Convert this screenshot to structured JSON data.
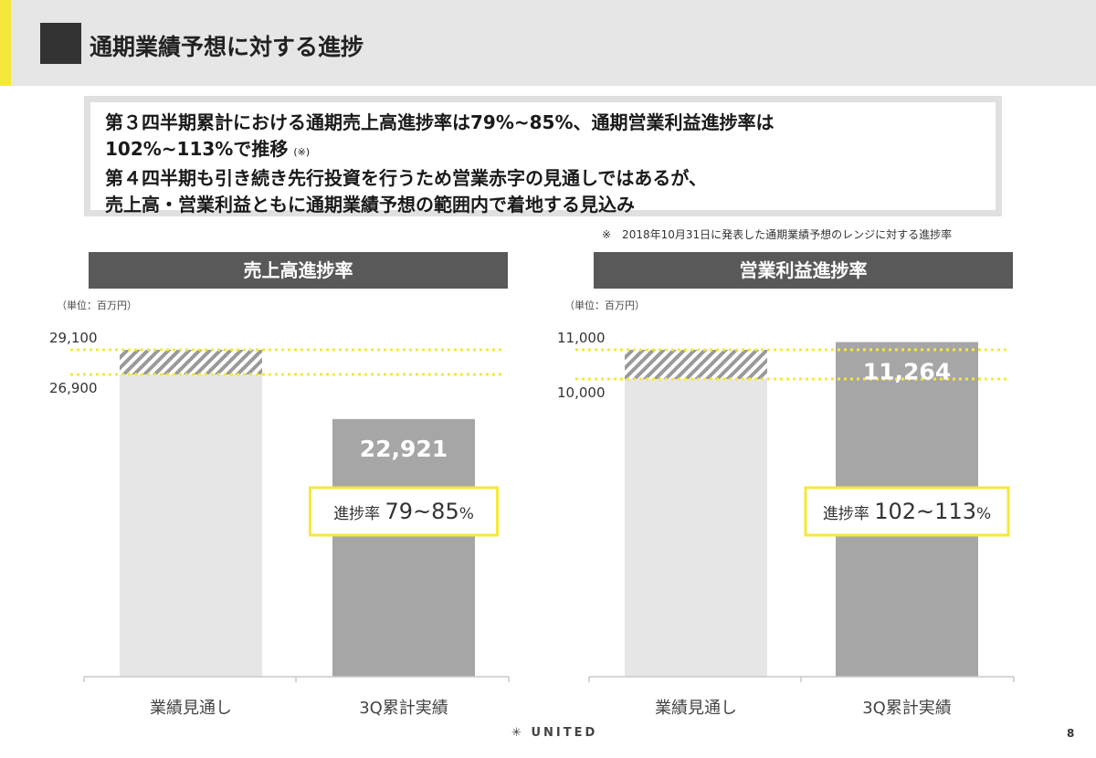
{
  "header": {
    "title": "通期業績予想に対する進捗"
  },
  "summary": {
    "line1": "第３四半期累計における通期売上高進捗率は79%~85%、通期営業利益進捗率は",
    "line2": "102%~113%で推移",
    "line2_note": "(※)",
    "line3": "第４四半期も引き続き先行投資を行うため営業赤字の見通しではあるが、",
    "line4": "売上高・営業利益ともに通期業績予想の範囲内で着地する見込み"
  },
  "footnote": "※　2018年10月31日に発表した通期業績予想のレンジに対する進捗率",
  "colors": {
    "forecast_bar": "#e6e6e6",
    "actual_bar": "#a6a6a6",
    "highlight": "#f5e83a",
    "hatch": "#9a9a9a"
  },
  "chart_data": [
    {
      "type": "bar",
      "title": "売上高進捗率",
      "unit": "（単位：百万円）",
      "categories": [
        "業績見通し",
        "3Q累計実績"
      ],
      "forecast_range": [
        26900,
        29100
      ],
      "forecast_labels": [
        "29,100",
        "26,900"
      ],
      "actual_value": 22921,
      "actual_label": "22,921",
      "progress_prefix": "進捗率",
      "progress_value": "79~85",
      "progress_suffix": "%"
    },
    {
      "type": "bar",
      "title": "営業利益進捗率",
      "unit": "（単位：百万円）",
      "categories": [
        "業績見通し",
        "3Q累計実績"
      ],
      "forecast_range": [
        10000,
        11000
      ],
      "forecast_labels": [
        "11,000",
        "10,000"
      ],
      "actual_value": 11264,
      "actual_label": "11,264",
      "progress_prefix": "進捗率",
      "progress_value": "102~113",
      "progress_suffix": "%"
    }
  ],
  "brand": "UNITED",
  "page_number": "8"
}
